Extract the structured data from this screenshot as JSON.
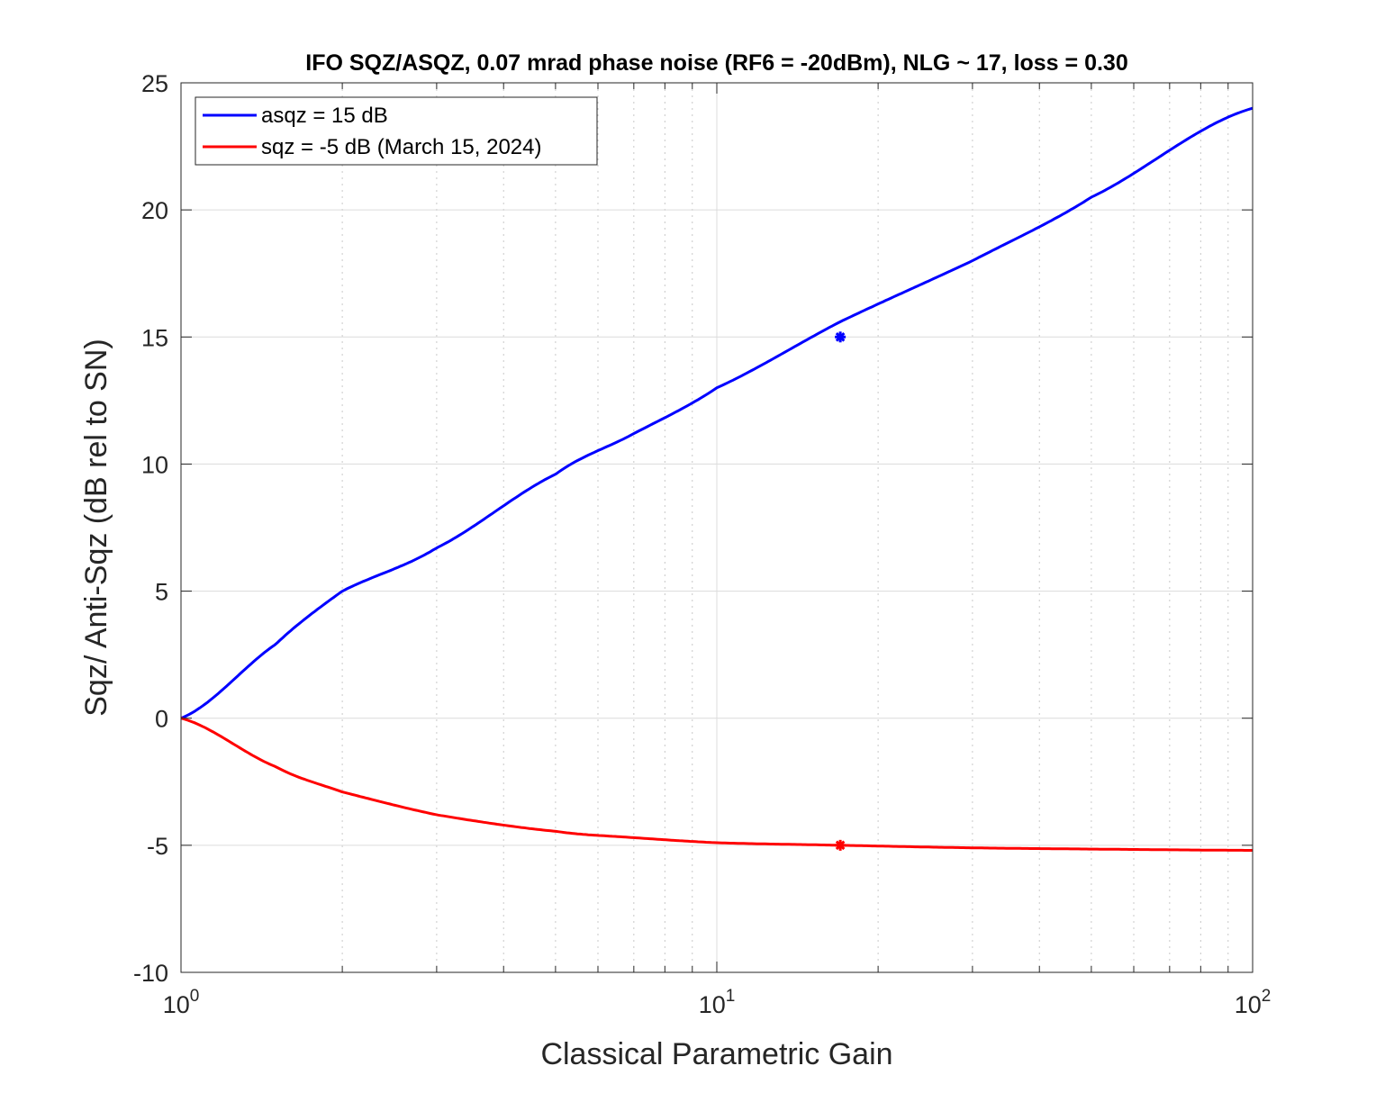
{
  "chart_data": {
    "type": "line",
    "title": "IFO SQZ/ASQZ, 0.07 mrad phase noise (RF6 = -20dBm), NLG ~ 17, loss = 0.30",
    "xlabel": "Classical Parametric Gain",
    "ylabel": "Sqz/ Anti-Sqz (dB rel to SN)",
    "xscale": "log",
    "xlim": [
      1,
      100
    ],
    "ylim": [
      -10,
      25
    ],
    "xticks": [
      {
        "value": 1,
        "base": "10",
        "exp": "0"
      },
      {
        "value": 10,
        "base": "10",
        "exp": "1"
      },
      {
        "value": 100,
        "base": "10",
        "exp": "2"
      }
    ],
    "yticks": [
      "-10",
      "-5",
      "0",
      "5",
      "10",
      "15",
      "20",
      "25"
    ],
    "grid": true,
    "legend_position": "top-left",
    "series": [
      {
        "name": "asqz = 15 dB",
        "color": "#0000ff",
        "x": [
          1,
          1.5,
          2,
          3,
          5,
          7,
          10,
          17,
          30,
          50,
          100
        ],
        "y": [
          0,
          2.9,
          5.0,
          6.7,
          9.6,
          11.2,
          13.0,
          15.6,
          18.0,
          20.5,
          24.0
        ]
      },
      {
        "name": "sqz = -5 dB (March 15, 2024)",
        "color": "#ff0000",
        "x": [
          1,
          1.5,
          2,
          3,
          5,
          7,
          10,
          17,
          30,
          50,
          100
        ],
        "y": [
          0,
          -1.9,
          -2.9,
          -3.8,
          -4.45,
          -4.7,
          -4.9,
          -5.0,
          -5.1,
          -5.15,
          -5.2
        ]
      }
    ],
    "markers": [
      {
        "series": "asqz = 15 dB",
        "x": 17,
        "y": 15,
        "symbol": "asterisk",
        "color": "#0000ff"
      },
      {
        "series": "sqz = -5 dB (March 15, 2024)",
        "x": 17,
        "y": -5,
        "symbol": "asterisk",
        "color": "#ff0000"
      }
    ]
  }
}
